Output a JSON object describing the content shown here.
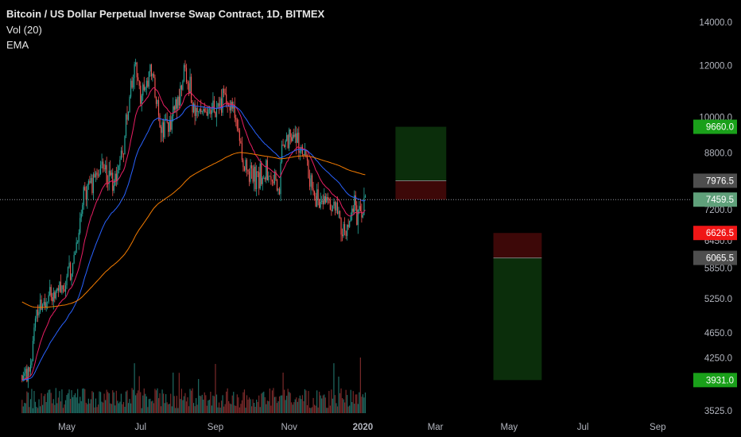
{
  "header": {
    "title": "Bitcoin / US Dollar Perpetual Inverse Swap Contract, 1D, BITMEX",
    "indicator_vol": "Vol (20)",
    "indicator_ema": "EMA"
  },
  "colors": {
    "background": "#000000",
    "up": "#26a69a",
    "down": "#ef5350",
    "ema_fast": "#e91e63",
    "ema_mid": "#2962ff",
    "ema_slow": "#f57c00",
    "profit_zone": "#0b2e0b",
    "loss_zone": "#3d0808",
    "tag_green": "#1aa01a",
    "tag_red": "#f01616",
    "tag_gray": "#4e4e4e"
  },
  "chart_data": {
    "type": "candlestick",
    "symbol": "Bitcoin / US Dollar Perpetual Inverse Swap Contract",
    "interval": "1D",
    "exchange": "BITMEX",
    "scale": "log",
    "ylim": [
      3525,
      14000
    ],
    "y_ticks": [
      "14000.0",
      "12000.0",
      "10000.0",
      "8800.0",
      "7200.0",
      "6450.0",
      "5850.0",
      "5250.0",
      "4650.0",
      "4250.0",
      "3525.0"
    ],
    "x_ticks": [
      "May",
      "Jul",
      "Sep",
      "Nov",
      "2020",
      "Mar",
      "May",
      "Jul",
      "Sep"
    ],
    "price_path": [
      [
        "2019-03-25",
        4000
      ],
      [
        "2019-04-01",
        4100
      ],
      [
        "2019-04-05",
        5000
      ],
      [
        "2019-04-20",
        5300
      ],
      [
        "2019-05-05",
        5700
      ],
      [
        "2019-05-12",
        7000
      ],
      [
        "2019-05-20",
        8000
      ],
      [
        "2019-06-01",
        8500
      ],
      [
        "2019-06-10",
        8000
      ],
      [
        "2019-06-18",
        9300
      ],
      [
        "2019-06-26",
        12500
      ],
      [
        "2019-07-01",
        10500
      ],
      [
        "2019-07-10",
        12000
      ],
      [
        "2019-07-17",
        9500
      ],
      [
        "2019-07-25",
        9800
      ],
      [
        "2019-08-01",
        10500
      ],
      [
        "2019-08-06",
        11800
      ],
      [
        "2019-08-15",
        10200
      ],
      [
        "2019-08-25",
        10200
      ],
      [
        "2019-09-05",
        10600
      ],
      [
        "2019-09-15",
        10300
      ],
      [
        "2019-09-24",
        8500
      ],
      [
        "2019-10-05",
        8200
      ],
      [
        "2019-10-20",
        8200
      ],
      [
        "2019-10-24",
        7500
      ],
      [
        "2019-10-26",
        9200
      ],
      [
        "2019-11-05",
        9300
      ],
      [
        "2019-11-15",
        8600
      ],
      [
        "2019-11-22",
        7300
      ],
      [
        "2019-12-01",
        7500
      ],
      [
        "2019-12-10",
        7250
      ],
      [
        "2019-12-18",
        6700
      ],
      [
        "2019-12-25",
        7250
      ],
      [
        "2020-01-01",
        7200
      ],
      [
        "2020-01-03",
        7400
      ]
    ],
    "ema_series": [
      "EMA (pink)",
      "EMA (blue)",
      "EMA (orange)"
    ],
    "price_tags": [
      {
        "value": "9660.0",
        "style": "green"
      },
      {
        "value": "7976.5",
        "style": "gray"
      },
      {
        "value": "7459.5",
        "style": "current"
      },
      {
        "value": "6626.5",
        "style": "red"
      },
      {
        "value": "6065.5",
        "style": "gray"
      },
      {
        "value": "3931.0",
        "style": "green"
      }
    ],
    "positions": [
      {
        "type": "long",
        "entry": 7976.5,
        "target": 9660.0,
        "stop": 7459.5,
        "start": "2020-01-28",
        "end": "2020-03-10"
      },
      {
        "type": "short",
        "entry": 6065.5,
        "stop": 6626.5,
        "target": 3931.0,
        "start": "2020-04-18",
        "end": "2020-05-28"
      }
    ]
  }
}
